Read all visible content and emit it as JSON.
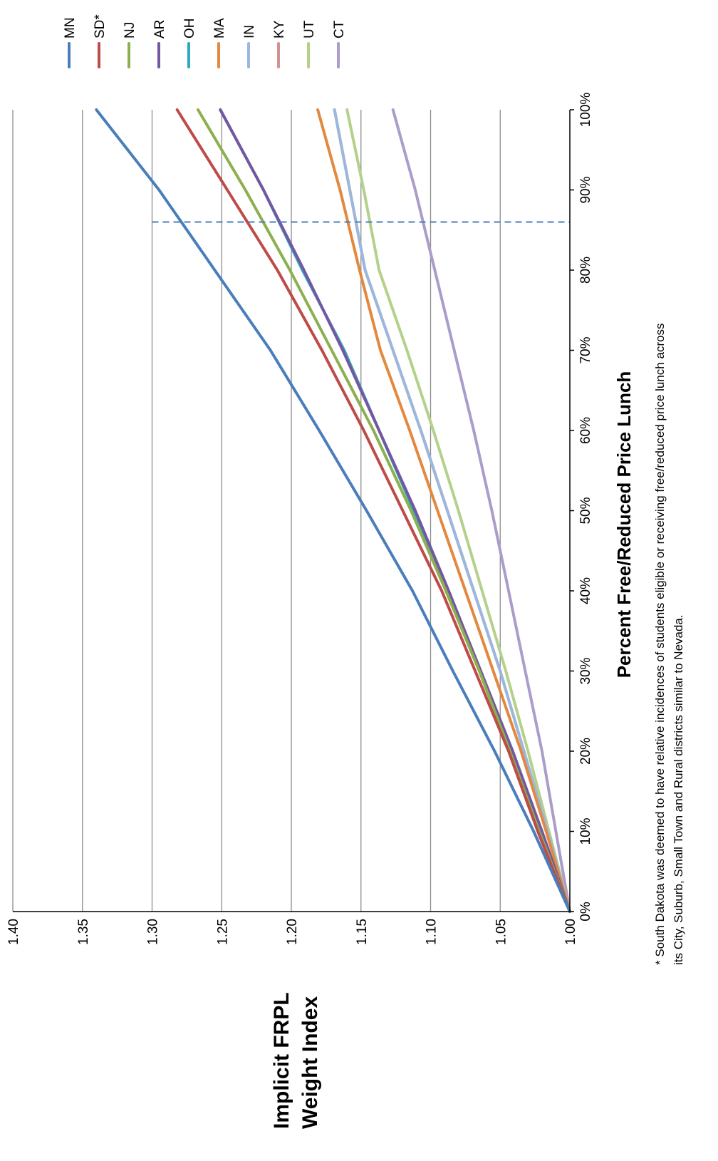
{
  "chart_data": {
    "type": "line",
    "orientation": "rotated-90-ccw",
    "title": "",
    "xlabel": "Percent Free/Reduced Price Lunch",
    "ylabel_lines": [
      "Implicit FRPL",
      "Weight Index"
    ],
    "xlim": [
      0,
      100
    ],
    "ylim": [
      1.0,
      1.4
    ],
    "x_ticks": [
      "0%",
      "10%",
      "20%",
      "30%",
      "40%",
      "50%",
      "60%",
      "70%",
      "80%",
      "90%",
      "100%"
    ],
    "y_ticks": [
      "1.00",
      "1.05",
      "1.10",
      "1.15",
      "1.20",
      "1.25",
      "1.30",
      "1.35",
      "1.40"
    ],
    "grid": "horizontal-major",
    "legend_position": "top",
    "reference_line": {
      "x": 86,
      "style": "dashed",
      "color": "#4a7ebb"
    },
    "x": [
      0,
      10,
      20,
      30,
      40,
      50,
      60,
      70,
      80,
      90,
      100
    ],
    "series": [
      {
        "name": "MN",
        "color": "#4a7ebb",
        "values": [
          1.0,
          1.026,
          1.054,
          1.084,
          1.113,
          1.146,
          1.18,
          1.215,
          1.255,
          1.295,
          1.34
        ]
      },
      {
        "name": "SD*",
        "color": "#be4b48",
        "values": [
          1.0,
          1.023,
          1.044,
          1.068,
          1.092,
          1.12,
          1.148,
          1.178,
          1.21,
          1.246,
          1.282
        ]
      },
      {
        "name": "NJ",
        "color": "#8cb04f",
        "values": [
          1.0,
          1.022,
          1.043,
          1.065,
          1.089,
          1.114,
          1.141,
          1.171,
          1.201,
          1.233,
          1.267
        ]
      },
      {
        "name": "AR",
        "color": "#7358a1",
        "values": [
          1.0,
          1.02,
          1.041,
          1.064,
          1.087,
          1.111,
          1.137,
          1.163,
          1.191,
          1.22,
          1.251
        ]
      },
      {
        "name": "OH",
        "color": "#31a8bf",
        "values": [
          1.0,
          1.021,
          1.042,
          1.064,
          1.088,
          1.112,
          1.137,
          1.162,
          1.192,
          1.22,
          1.251
        ]
      },
      {
        "name": "MA",
        "color": "#e3883f",
        "values": [
          1.0,
          1.017,
          1.035,
          1.055,
          1.075,
          1.095,
          1.115,
          1.136,
          1.151,
          1.165,
          1.181
        ]
      },
      {
        "name": "IN",
        "color": "#9bb7dd",
        "values": [
          1.0,
          1.016,
          1.033,
          1.05,
          1.069,
          1.088,
          1.107,
          1.127,
          1.147,
          1.158,
          1.169
        ]
      },
      {
        "name": "KY",
        "color": "#d49193",
        "values": [
          1.0,
          1.016,
          1.033,
          1.05,
          1.069,
          1.088,
          1.107,
          1.127,
          1.147,
          1.158,
          1.169
        ]
      },
      {
        "name": "UT",
        "color": "#b4d18b",
        "values": [
          1.0,
          1.015,
          1.03,
          1.046,
          1.063,
          1.08,
          1.098,
          1.117,
          1.137,
          1.148,
          1.16
        ]
      },
      {
        "name": "CT",
        "color": "#ab9dc9",
        "values": [
          1.0,
          1.01,
          1.02,
          1.032,
          1.044,
          1.056,
          1.069,
          1.083,
          1.097,
          1.111,
          1.127
        ]
      }
    ],
    "footnote_lines": [
      "* South Dakota was deemed to have relative incidences of students eligible or receiving free/reduced  price lunch across",
      "its City, Suburb, Small Town and Rural districts similar to Nevada."
    ]
  }
}
